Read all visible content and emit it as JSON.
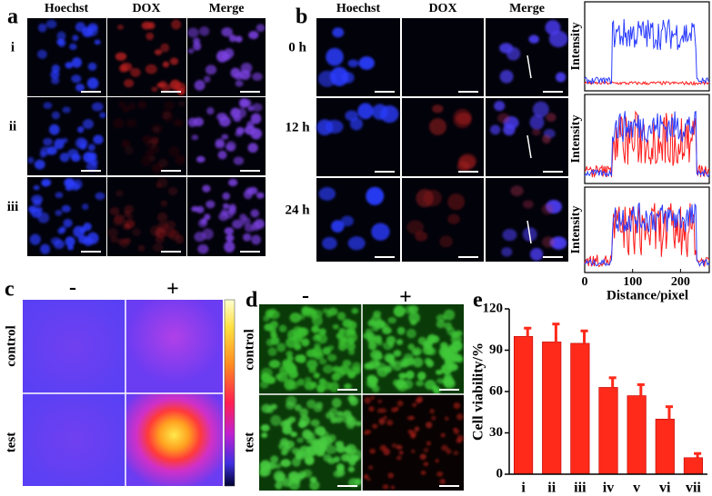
{
  "panel_labels": [
    "a",
    "b",
    "c",
    "d",
    "e"
  ],
  "a": {
    "columns": [
      "Hoechst",
      "DOX",
      "Merge"
    ],
    "rows": [
      "i",
      "ii",
      "iii"
    ]
  },
  "b": {
    "columns": [
      "Hoechst",
      "DOX",
      "Merge"
    ],
    "rows": [
      "0 h",
      "12 h",
      "24 h"
    ],
    "plot_ylabel": "Intensity",
    "plot_xlabel": "Distance/pixel",
    "plot_xlim": [
      0,
      260
    ],
    "plot_xticks": [
      0,
      100,
      200
    ]
  },
  "c": {
    "columns": [
      "-",
      "+"
    ],
    "rows": [
      "control",
      "test"
    ]
  },
  "d": {
    "columns": [
      "-",
      "+"
    ],
    "rows": [
      "control",
      "test"
    ]
  },
  "chart_data": {
    "type": "bar",
    "categories": [
      "i",
      "ii",
      "iii",
      "iv",
      "v",
      "vi",
      "vii"
    ],
    "values": [
      100,
      96,
      95,
      63,
      57,
      40,
      12
    ],
    "errors": [
      6,
      13,
      9,
      7,
      8,
      9,
      3
    ],
    "color": "#ff2a1a",
    "ylabel": "Cell viability/%",
    "ylim": [
      0,
      120
    ],
    "yticks": [
      0,
      30,
      60,
      90,
      120
    ]
  }
}
